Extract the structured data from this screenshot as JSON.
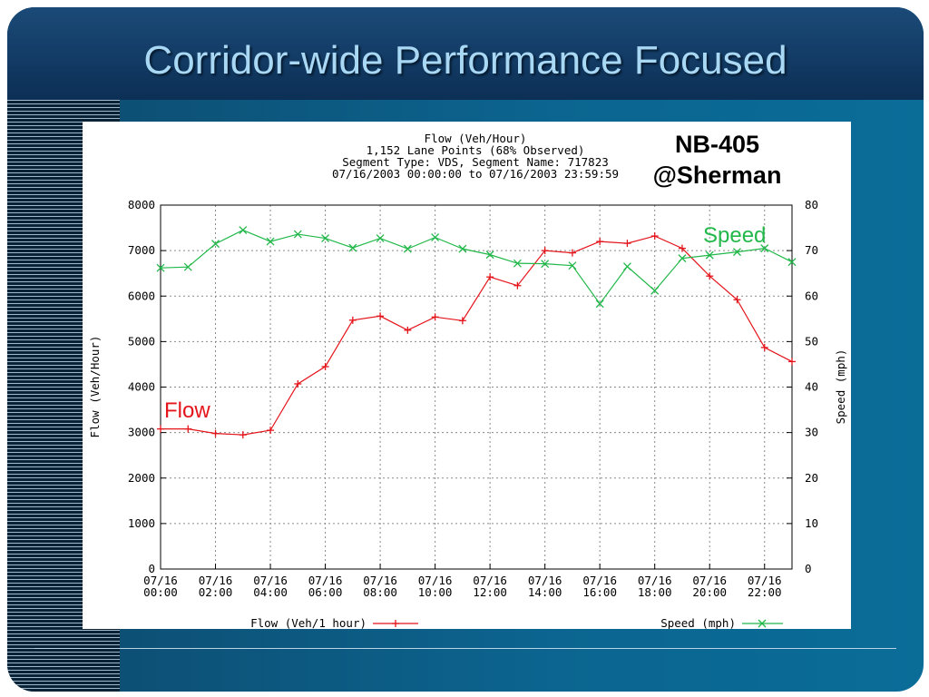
{
  "slide": {
    "title": "Corridor-wide Performance Focused",
    "location_line1": "NB-405",
    "location_line2": "@Sherman",
    "flow_callout": "Flow",
    "speed_callout": "Speed",
    "colors": {
      "flow": "#e4141b",
      "speed": "#22b84a",
      "title": "#a9d8f5",
      "background": "#0b6590"
    }
  },
  "chart_data": {
    "type": "line",
    "header_lines": [
      "Flow (Veh/Hour)",
      "1,152 Lane Points (68% Observed)",
      "Segment Type: VDS, Segment Name: 717823",
      "07/16/2003 00:00:00 to 07/16/2003 23:59:59"
    ],
    "ylabel_left": "Flow (Veh/Hour)",
    "ylabel_right": "Speed (mph)",
    "ylim_left": [
      0,
      8000
    ],
    "ylim_right": [
      0,
      80
    ],
    "yticks_left": [
      "0",
      "1000",
      "2000",
      "3000",
      "4000",
      "5000",
      "6000",
      "7000",
      "8000"
    ],
    "yticks_right": [
      "0",
      "10",
      "20",
      "30",
      "40",
      "50",
      "60",
      "70",
      "80"
    ],
    "xlim_hours": [
      0,
      23
    ],
    "xticks": [
      {
        "hour": 0,
        "date": "07/16",
        "time": "00:00"
      },
      {
        "hour": 2,
        "date": "07/16",
        "time": "02:00"
      },
      {
        "hour": 4,
        "date": "07/16",
        "time": "04:00"
      },
      {
        "hour": 6,
        "date": "07/16",
        "time": "06:00"
      },
      {
        "hour": 8,
        "date": "07/16",
        "time": "08:00"
      },
      {
        "hour": 10,
        "date": "07/16",
        "time": "10:00"
      },
      {
        "hour": 12,
        "date": "07/16",
        "time": "12:00"
      },
      {
        "hour": 14,
        "date": "07/16",
        "time": "14:00"
      },
      {
        "hour": 16,
        "date": "07/16",
        "time": "16:00"
      },
      {
        "hour": 18,
        "date": "07/16",
        "time": "18:00"
      },
      {
        "hour": 20,
        "date": "07/16",
        "time": "20:00"
      },
      {
        "hour": 22,
        "date": "07/16",
        "time": "22:00"
      }
    ],
    "grid": true,
    "legend_placement": "bottom",
    "series": [
      {
        "name": "Flow (Veh/1 hour)",
        "axis": "left",
        "marker": "plus",
        "color": "#e4141b",
        "x": [
          0,
          1,
          2,
          3,
          4,
          5,
          6,
          7,
          8,
          9,
          10,
          11,
          12,
          13,
          14,
          15,
          16,
          17,
          18,
          19,
          20,
          21,
          22,
          23
        ],
        "values": [
          3080,
          3080,
          2980,
          2950,
          3050,
          4070,
          4450,
          5470,
          5560,
          5250,
          5540,
          5460,
          6420,
          6230,
          7000,
          6950,
          7200,
          7160,
          7320,
          7050,
          6440,
          5920,
          4870,
          4560
        ]
      },
      {
        "name": "Speed (mph)",
        "axis": "right",
        "marker": "x",
        "color": "#22b84a",
        "x": [
          0,
          1,
          2,
          3,
          4,
          5,
          6,
          7,
          8,
          9,
          10,
          11,
          12,
          13,
          14,
          15,
          16,
          17,
          18,
          19,
          20,
          21,
          22,
          23
        ],
        "values": [
          66.2,
          66.4,
          71.5,
          74.5,
          72.0,
          73.6,
          72.7,
          70.6,
          72.7,
          70.4,
          72.9,
          70.4,
          69.1,
          67.2,
          67.1,
          66.7,
          58.3,
          66.5,
          61.2,
          68.3,
          69.0,
          69.7,
          70.5,
          67.5
        ]
      }
    ]
  }
}
